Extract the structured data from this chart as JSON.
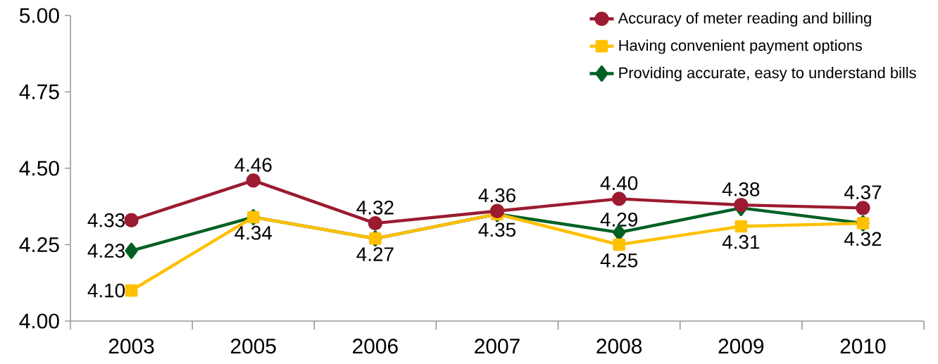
{
  "chart_data": {
    "type": "line",
    "categories": [
      "2003",
      "2005",
      "2006",
      "2007",
      "2008",
      "2009",
      "2010"
    ],
    "series": [
      {
        "name": "Accuracy of meter reading and billing",
        "color": "#9b1b30",
        "marker": "circle",
        "values": [
          4.33,
          4.46,
          4.32,
          4.36,
          4.4,
          4.38,
          4.37
        ],
        "value_labels": [
          "4.33",
          "4.46",
          "4.32",
          "4.36",
          "4.40",
          "4.38",
          "4.37"
        ]
      },
      {
        "name": "Having convenient payment options",
        "color": "#ffc000",
        "marker": "square",
        "values": [
          4.1,
          4.34,
          4.27,
          4.35,
          4.25,
          4.31,
          4.32
        ],
        "value_labels": [
          "4.10",
          null,
          null,
          null,
          "4.25",
          "4.31",
          "4.32"
        ]
      },
      {
        "name": "Providing accurate, easy to understand bills",
        "color": "#006024",
        "marker": "diamond",
        "values": [
          4.23,
          4.34,
          4.27,
          4.35,
          4.29,
          4.37,
          4.32
        ],
        "value_labels": [
          "4.23",
          "4.34",
          "4.27",
          "4.35",
          "4.29",
          null,
          null
        ]
      }
    ],
    "ylim": [
      4.0,
      5.0
    ],
    "yticks": [
      {
        "value": 4.0,
        "label": "4.00"
      },
      {
        "value": 4.25,
        "label": "4.25"
      },
      {
        "value": 4.5,
        "label": "4.50"
      },
      {
        "value": 4.75,
        "label": "4.75"
      },
      {
        "value": 5.0,
        "label": "5.00"
      }
    ],
    "legend": "top right",
    "grid": false,
    "line_style": "solid"
  }
}
